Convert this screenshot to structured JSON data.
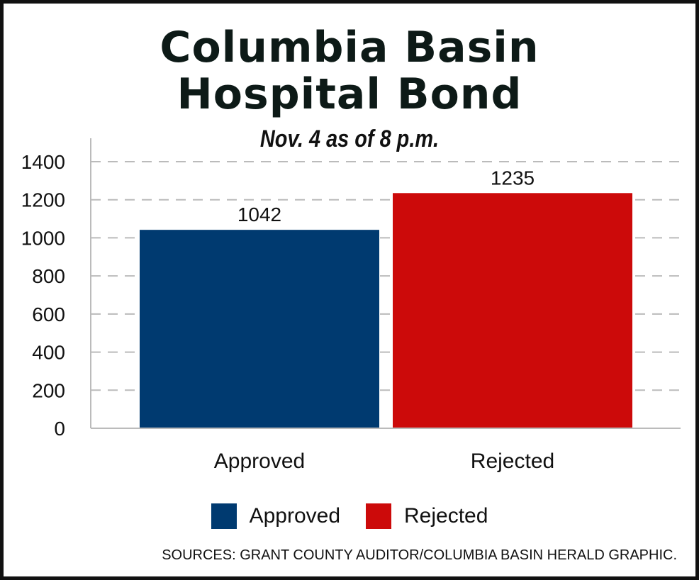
{
  "chart_data": {
    "type": "bar",
    "title_lines": [
      "Columbia Basin",
      "Hospital Bond"
    ],
    "subtitle": "Nov. 4 as of 8 p.m.",
    "categories": [
      "Approved",
      "Rejected"
    ],
    "values": [
      1042,
      1235
    ],
    "data_labels": [
      "1042",
      "1235"
    ],
    "colors": [
      "#003a70",
      "#cc0a0a"
    ],
    "ylim": [
      0,
      1400
    ],
    "yticks": [
      "0",
      "200",
      "400",
      "600",
      "800",
      "1000",
      "1200",
      "1400"
    ],
    "grid": true,
    "legend": {
      "placement": "bottom",
      "entries": [
        "Approved",
        "Rejected"
      ]
    },
    "source": "SOURCES: GRANT COUNTY AUDITOR/COLUMBIA BASIN HERALD GRAPHIC."
  }
}
